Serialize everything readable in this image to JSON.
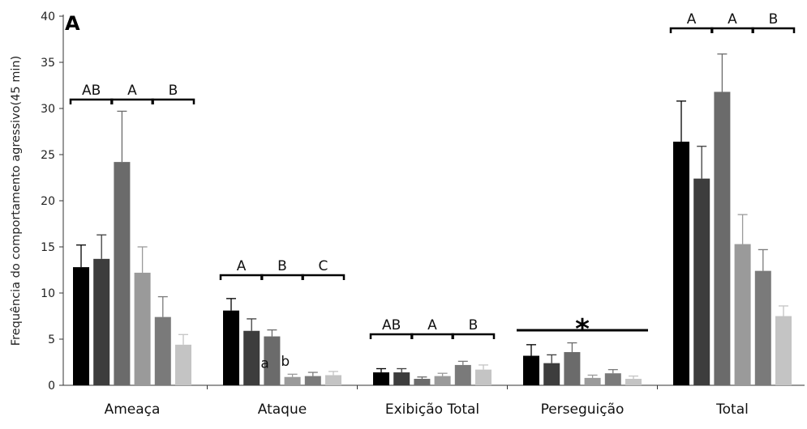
{
  "chart_data": {
    "type": "bar",
    "panel_label": "A",
    "ylabel": "Frequência do comportamento agressivo(45 min)",
    "ylim": [
      0,
      40
    ],
    "yticks": [
      0,
      5,
      10,
      15,
      20,
      25,
      30,
      35,
      40
    ],
    "grid": false,
    "legend": "none",
    "categories": [
      "Ameaça",
      "Ataque",
      "Exibição Total",
      "Perseguição",
      "Total"
    ],
    "colors": [
      "#000000",
      "#3d3d3d",
      "#6b6b6b",
      "#9a9a9a",
      "#7a7a7a",
      "#c4c4c4"
    ],
    "series": [
      {
        "values": [
          12.8,
          8.1,
          1.4,
          3.2,
          26.4
        ],
        "errors": [
          2.4,
          1.3,
          0.4,
          1.2,
          4.4
        ]
      },
      {
        "values": [
          13.7,
          5.9,
          1.4,
          2.4,
          22.4
        ],
        "errors": [
          2.6,
          1.3,
          0.4,
          0.9,
          3.5
        ]
      },
      {
        "values": [
          24.2,
          5.3,
          0.7,
          3.6,
          31.8
        ],
        "errors": [
          5.5,
          0.7,
          0.2,
          1.0,
          4.1
        ]
      },
      {
        "values": [
          12.2,
          0.9,
          1.0,
          0.8,
          15.3
        ],
        "errors": [
          2.8,
          0.3,
          0.3,
          0.3,
          3.2
        ]
      },
      {
        "values": [
          7.4,
          1.0,
          2.2,
          1.3,
          12.4
        ],
        "errors": [
          2.2,
          0.4,
          0.4,
          0.4,
          2.3
        ]
      },
      {
        "values": [
          4.4,
          1.1,
          1.7,
          0.7,
          7.5
        ],
        "errors": [
          1.1,
          0.4,
          0.5,
          0.3,
          1.1
        ]
      }
    ],
    "group_annotations": [
      [
        "AB",
        "A",
        "B"
      ],
      [
        "A",
        "B",
        "C"
      ],
      [
        "AB",
        "A",
        "B"
      ],
      [],
      [
        "A",
        "A",
        "B"
      ]
    ],
    "bar_annotations": [
      {
        "category": "Ataque",
        "series": 3,
        "text": "a"
      },
      {
        "category": "Ataque",
        "series": 4,
        "text": "b"
      }
    ],
    "significance_marks": [
      {
        "category": "Perseguição",
        "text": "*"
      }
    ]
  }
}
